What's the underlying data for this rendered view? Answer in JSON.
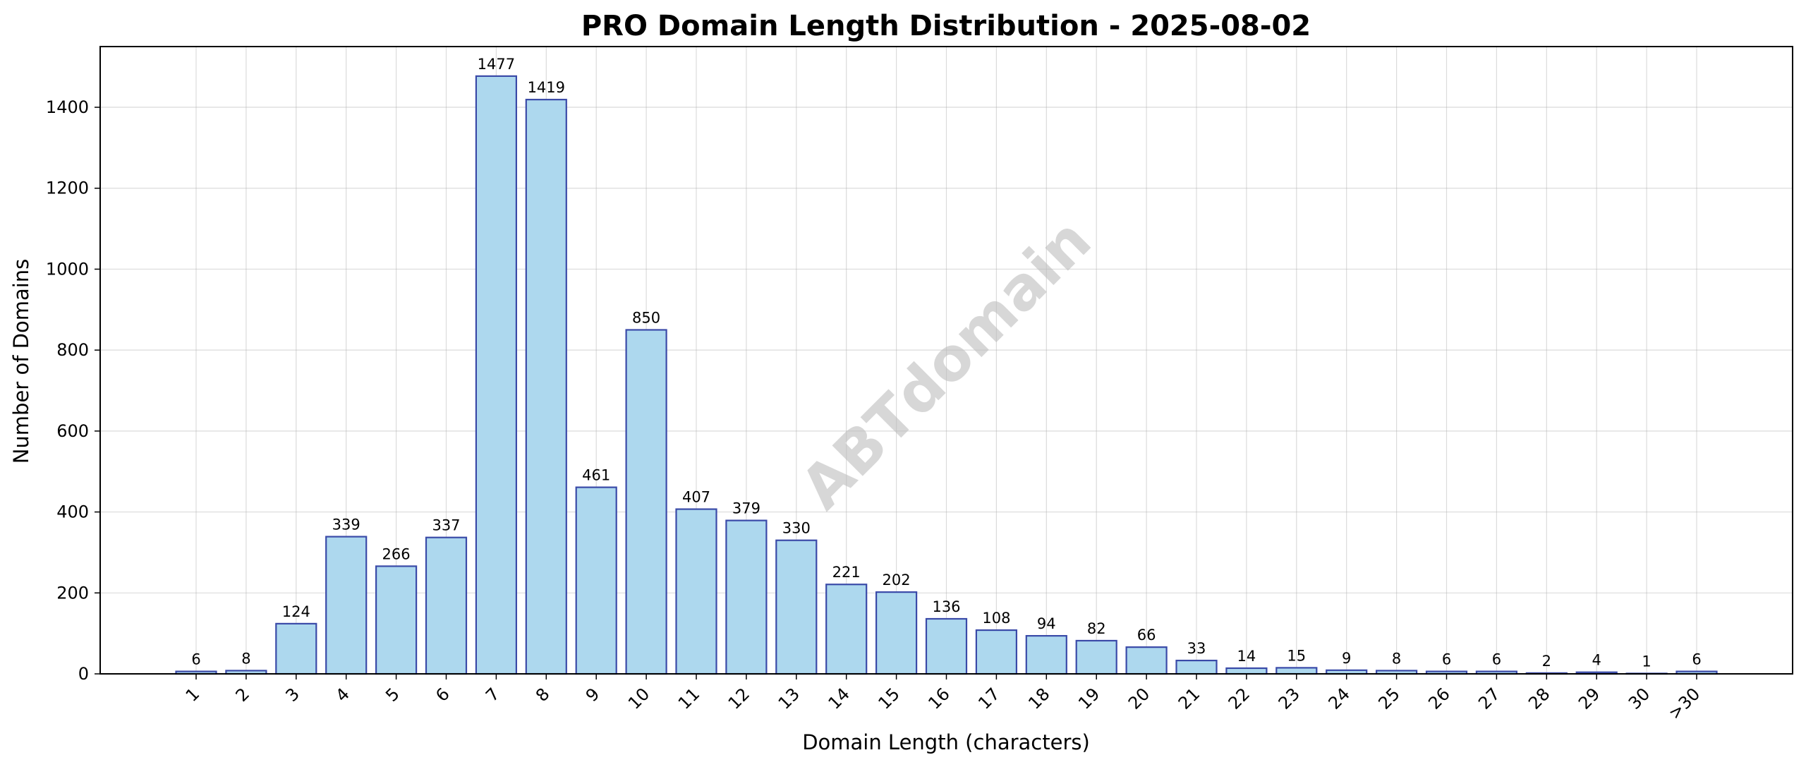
{
  "chart_data": {
    "type": "bar",
    "title": "PRO Domain Length Distribution - 2025-08-02",
    "xlabel": "Domain Length (characters)",
    "ylabel": "Number of Domains",
    "categories": [
      "1",
      "2",
      "3",
      "4",
      "5",
      "6",
      "7",
      "8",
      "9",
      "10",
      "11",
      "12",
      "13",
      "14",
      "15",
      "16",
      "17",
      "18",
      "19",
      "20",
      "21",
      "22",
      "23",
      "24",
      "25",
      "26",
      "27",
      "28",
      "29",
      "30",
      ">30"
    ],
    "values": [
      6,
      8,
      124,
      339,
      266,
      337,
      1477,
      1419,
      461,
      850,
      407,
      379,
      330,
      221,
      202,
      136,
      108,
      94,
      82,
      66,
      33,
      14,
      15,
      9,
      8,
      6,
      6,
      2,
      4,
      1,
      6
    ],
    "ylim": [
      0,
      1550
    ],
    "yticks": [
      0,
      200,
      400,
      600,
      800,
      1000,
      1200,
      1400
    ],
    "grid": true,
    "bar_fill": "#add8ee",
    "bar_edge": "#3a4aa8",
    "watermark": "ABTdomain"
  }
}
